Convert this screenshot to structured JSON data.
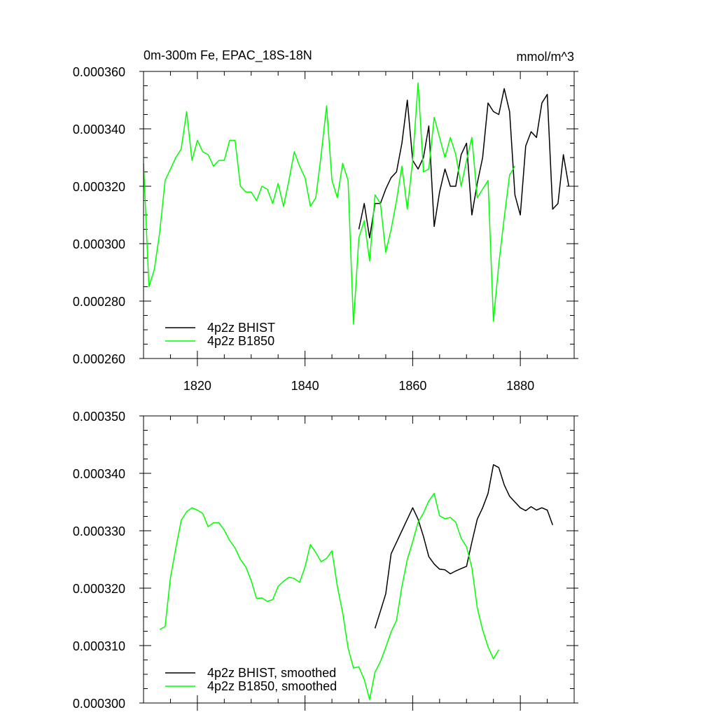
{
  "chart_data": [
    {
      "type": "line",
      "title": "0m-300m Fe, EPAC_18S-18N",
      "units": "mmol/m^3",
      "xlim": [
        1810,
        1890
      ],
      "ylim": [
        0.00026,
        0.00036
      ],
      "x_ticks": [
        1820,
        1840,
        1860,
        1880
      ],
      "y_ticks": [
        0.00026,
        0.00028,
        0.0003,
        0.00032,
        0.00034,
        0.00036
      ],
      "y_tick_labels": [
        "0.000260",
        "0.000280",
        "0.000300",
        "0.000320",
        "0.000340",
        "0.000360"
      ],
      "x_tick_labels": [
        "1820",
        "1840",
        "1860",
        "1880"
      ],
      "legend_position": "bottom-left",
      "series": [
        {
          "name": "4p2z BHIST",
          "color": "#000000",
          "x": [
            1850,
            1851,
            1852,
            1853,
            1854,
            1855,
            1856,
            1857,
            1858,
            1859,
            1860,
            1861,
            1862,
            1863,
            1864,
            1865,
            1866,
            1867,
            1868,
            1869,
            1870,
            1871,
            1872,
            1873,
            1874,
            1875,
            1876,
            1877,
            1878,
            1879,
            1880,
            1881,
            1882,
            1883,
            1884,
            1885,
            1886,
            1887,
            1888,
            1889
          ],
          "y": [
            0.000305,
            0.000314,
            0.000302,
            0.000314,
            0.000314,
            0.000319,
            0.000323,
            0.000325,
            0.000335,
            0.00035,
            0.000329,
            0.000326,
            0.00033,
            0.000341,
            0.000306,
            0.000318,
            0.000326,
            0.00032,
            0.00032,
            0.000331,
            0.000335,
            0.00031,
            0.000321,
            0.00033,
            0.000349,
            0.000346,
            0.000345,
            0.000354,
            0.000346,
            0.000317,
            0.00031,
            0.000334,
            0.000339,
            0.000337,
            0.000349,
            0.000352,
            0.000312,
            0.000314,
            0.000331,
            0.00032
          ]
        },
        {
          "name": "4p2z B1850",
          "color": "#00ff00",
          "x": [
            1810,
            1811,
            1812,
            1813,
            1814,
            1815,
            1816,
            1817,
            1818,
            1819,
            1820,
            1821,
            1822,
            1823,
            1824,
            1825,
            1826,
            1827,
            1828,
            1829,
            1830,
            1831,
            1832,
            1833,
            1834,
            1835,
            1836,
            1837,
            1838,
            1839,
            1840,
            1841,
            1842,
            1843,
            1844,
            1845,
            1846,
            1847,
            1848,
            1849,
            1850,
            1851,
            1852,
            1853,
            1854,
            1855,
            1856,
            1857,
            1858,
            1859,
            1860,
            1861,
            1862,
            1863,
            1864,
            1865,
            1866,
            1867,
            1868,
            1869,
            1870,
            1871,
            1872,
            1873,
            1874,
            1875,
            1876,
            1877,
            1878,
            1879
          ],
          "y": [
            0.000328,
            0.000285,
            0.000291,
            0.000304,
            0.000322,
            0.000326,
            0.00033,
            0.000333,
            0.000346,
            0.000329,
            0.000336,
            0.000332,
            0.000331,
            0.000327,
            0.000329,
            0.000329,
            0.000336,
            0.000336,
            0.00032,
            0.000318,
            0.000318,
            0.000315,
            0.00032,
            0.000319,
            0.000314,
            0.000321,
            0.000313,
            0.000322,
            0.000332,
            0.000327,
            0.000323,
            0.000313,
            0.000316,
            0.000331,
            0.000348,
            0.000322,
            0.000316,
            0.000328,
            0.000322,
            0.000272,
            0.000302,
            0.000308,
            0.000294,
            0.000317,
            0.000314,
            0.000297,
            0.000305,
            0.000315,
            0.000327,
            0.000312,
            0.000329,
            0.000356,
            0.000325,
            0.000326,
            0.000344,
            0.000337,
            0.00033,
            0.000337,
            0.000331,
            0.00032,
            0.000329,
            0.000337,
            0.000316,
            0.000319,
            0.000322,
            0.000273,
            0.000293,
            0.000309,
            0.000324,
            0.000327
          ]
        }
      ]
    },
    {
      "type": "line",
      "xlim": [
        1810,
        1890
      ],
      "ylim": [
        0.0003,
        0.00035
      ],
      "x_ticks": [
        1820,
        1840,
        1860,
        1880
      ],
      "y_ticks": [
        0.0003,
        0.00031,
        0.00032,
        0.00033,
        0.00034,
        0.00035
      ],
      "y_tick_labels": [
        "0.000300",
        "0.000310",
        "0.000320",
        "0.000330",
        "0.000340",
        "0.000350"
      ],
      "legend_position": "bottom-left",
      "series": [
        {
          "name": "4p2z BHIST, smoothed",
          "color": "#000000",
          "x": [
            1853,
            1854,
            1855,
            1856,
            1857,
            1858,
            1859,
            1860,
            1861,
            1862,
            1863,
            1864,
            1865,
            1866,
            1867,
            1868,
            1869,
            1870,
            1871,
            1872,
            1873,
            1874,
            1875,
            1876,
            1877,
            1878,
            1879,
            1880,
            1881,
            1882,
            1883,
            1884,
            1885,
            1886
          ],
          "y": [
            0.000313,
            0.000316,
            0.000319,
            0.000326,
            0.000328,
            0.00033,
            0.000332,
            0.000334,
            0.000332,
            0.000329,
            0.0003255,
            0.0003242,
            0.0003233,
            0.0003232,
            0.0003225,
            0.000323,
            0.0003234,
            0.0003238,
            0.000328,
            0.000332,
            0.000334,
            0.0003365,
            0.0003415,
            0.000341,
            0.000338,
            0.000336,
            0.000335,
            0.000334,
            0.0003335,
            0.0003342,
            0.0003336,
            0.000334,
            0.0003336,
            0.000331
          ]
        },
        {
          "name": "4p2z B1850, smoothed",
          "color": "#00ff00",
          "x": [
            1813,
            1814,
            1815,
            1816,
            1817,
            1818,
            1819,
            1820,
            1821,
            1822,
            1823,
            1824,
            1825,
            1826,
            1827,
            1828,
            1829,
            1830,
            1831,
            1832,
            1833,
            1834,
            1835,
            1836,
            1837,
            1838,
            1839,
            1840,
            1841,
            1842,
            1843,
            1844,
            1845,
            1846,
            1847,
            1848,
            1849,
            1850,
            1851,
            1852,
            1853,
            1854,
            1855,
            1856,
            1857,
            1858,
            1859,
            1860,
            1861,
            1862,
            1863,
            1864,
            1865,
            1866,
            1867,
            1868,
            1869,
            1870,
            1871,
            1872,
            1873,
            1874,
            1875,
            1876
          ],
          "y": [
            0.0003128,
            0.0003133,
            0.0003218,
            0.000327,
            0.0003318,
            0.0003333,
            0.000334,
            0.0003336,
            0.000333,
            0.0003307,
            0.0003314,
            0.0003314,
            0.0003301,
            0.0003283,
            0.000327,
            0.000325,
            0.0003237,
            0.0003213,
            0.0003182,
            0.0003183,
            0.0003177,
            0.000318,
            0.0003203,
            0.0003212,
            0.0003219,
            0.0003217,
            0.000321,
            0.0003237,
            0.0003276,
            0.0003262,
            0.0003246,
            0.0003252,
            0.0003265,
            0.0003203,
            0.0003157,
            0.0003096,
            0.0003061,
            0.0003063,
            0.0003041,
            0.0003006,
            0.0003054,
            0.0003072,
            0.0003097,
            0.0003124,
            0.0003144,
            0.0003203,
            0.000325,
            0.0003281,
            0.0003315,
            0.0003331,
            0.0003352,
            0.0003365,
            0.0003326,
            0.0003321,
            0.0003323,
            0.0003315,
            0.0003287,
            0.0003272,
            0.0003236,
            0.0003166,
            0.0003127,
            0.0003098,
            0.0003077,
            0.0003093
          ]
        }
      ]
    }
  ]
}
